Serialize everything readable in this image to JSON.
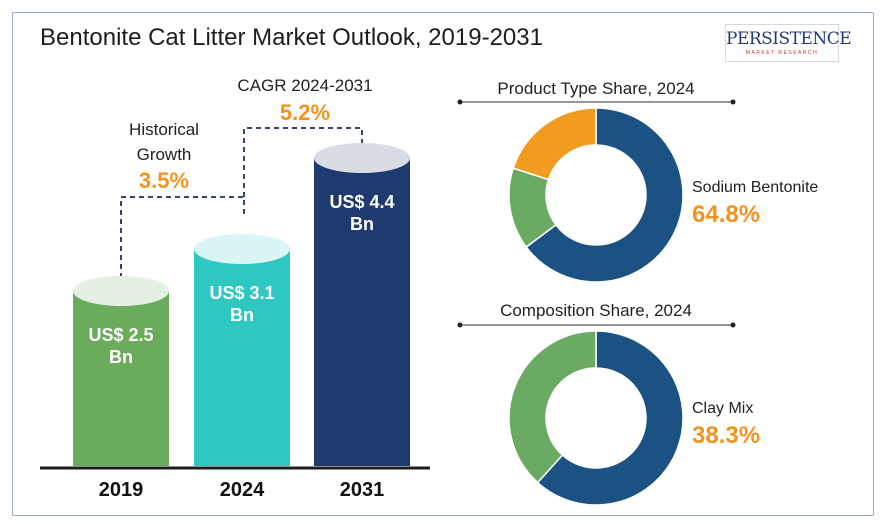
{
  "title": "Bentonite Cat Litter Market Outlook, 2019-2031",
  "logo": {
    "main": "PERSISTENCE",
    "sub": "MARKET RESEARCH"
  },
  "colors": {
    "bar_2019": "#6aab5c",
    "bar_2024": "#2ec8c0",
    "bar_2031": "#1f3a6e",
    "donut_primary": "#1c5184",
    "donut_secondary": "#6aaa62",
    "donut_tertiary": "#f29c1f",
    "accent": "#f5921e"
  },
  "annotations": {
    "historical_label_1": "Historical",
    "historical_label_2": "Growth",
    "historical_value": "3.5%",
    "cagr_label": "CAGR 2024-2031",
    "cagr_value": "5.2%"
  },
  "chart_data": [
    {
      "type": "bar",
      "categories": [
        "2019",
        "2024",
        "2031"
      ],
      "values": [
        2.5,
        3.1,
        4.4
      ],
      "unit": "US$ Bn",
      "labels": [
        {
          "line1": "US$ 2.5",
          "line2": "Bn"
        },
        {
          "line1": "US$ 3.1",
          "line2": "Bn"
        },
        {
          "line1": "US$ 4.4",
          "line2": "Bn"
        }
      ]
    },
    {
      "type": "pie",
      "title": "Product Type Share, 2024",
      "slices": [
        {
          "value": 64.8,
          "color": "#1c5184"
        },
        {
          "value": 15.2,
          "color": "#6aaa62"
        },
        {
          "value": 20.0,
          "color": "#f29c1f"
        }
      ],
      "highlight_label": "Sodium Bentonite",
      "highlight_value": "64.8%"
    },
    {
      "type": "pie",
      "title": "Composition Share, 2024",
      "slices": [
        {
          "value": 61.7,
          "color": "#1c5184"
        },
        {
          "value": 38.3,
          "color": "#6aaa62"
        }
      ],
      "highlight_label": "Clay Mix",
      "highlight_value": "38.3%"
    }
  ]
}
